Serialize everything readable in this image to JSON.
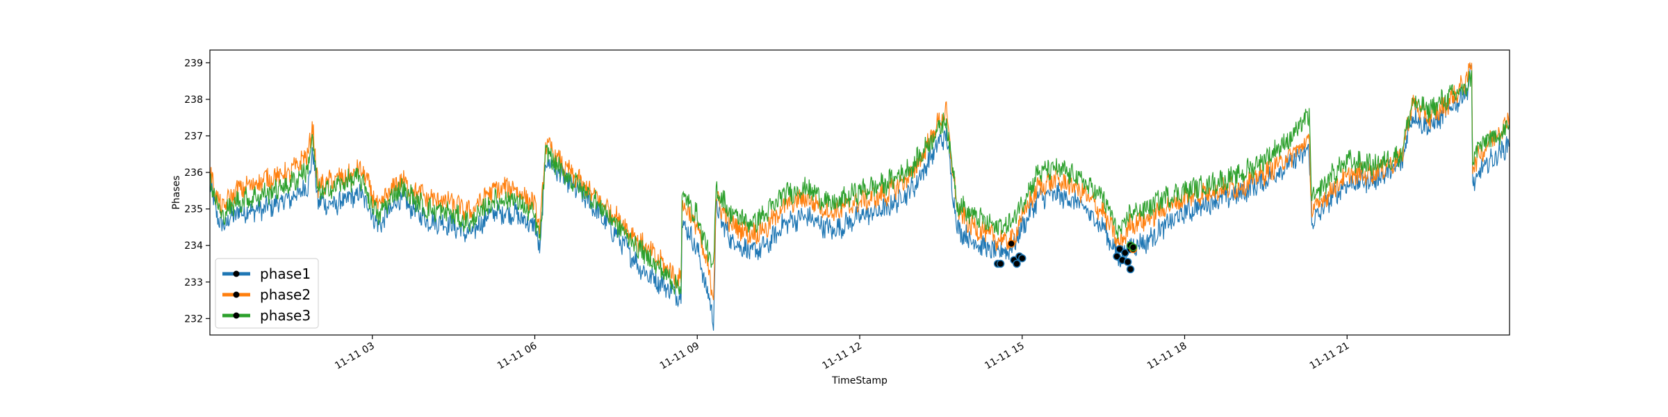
{
  "chart_data": {
    "type": "line",
    "xlabel": "TimeStamp",
    "ylabel": "Phases",
    "xlim": [
      0,
      24
    ],
    "ylim": [
      231.55,
      239.35
    ],
    "x_ticks": [
      {
        "value": 3,
        "label": "11-11 03"
      },
      {
        "value": 6,
        "label": "11-11 06"
      },
      {
        "value": 9,
        "label": "11-11 09"
      },
      {
        "value": 12,
        "label": "11-11 12"
      },
      {
        "value": 15,
        "label": "11-11 15"
      },
      {
        "value": 18,
        "label": "11-11 18"
      },
      {
        "value": 21,
        "label": "11-11 21"
      }
    ],
    "y_ticks": [
      {
        "value": 232,
        "label": "232"
      },
      {
        "value": 233,
        "label": "233"
      },
      {
        "value": 234,
        "label": "234"
      },
      {
        "value": 235,
        "label": "235"
      },
      {
        "value": 236,
        "label": "236"
      },
      {
        "value": 237,
        "label": "237"
      },
      {
        "value": 238,
        "label": "238"
      },
      {
        "value": 239,
        "label": "239"
      }
    ],
    "legend_position": "lower-left",
    "grid": false,
    "series": [
      {
        "name": "phase1",
        "color": "#1f77b4",
        "points": [
          [
            0,
            235.6
          ],
          [
            0.2,
            234.5
          ],
          [
            0.5,
            234.9
          ],
          [
            1.0,
            235.0
          ],
          [
            1.5,
            235.3
          ],
          [
            1.8,
            235.6
          ],
          [
            1.9,
            236.5
          ],
          [
            2.0,
            235.2
          ],
          [
            2.3,
            235.1
          ],
          [
            2.6,
            235.3
          ],
          [
            2.8,
            235.4
          ],
          [
            3.0,
            234.9
          ],
          [
            3.1,
            234.5
          ],
          [
            3.5,
            235.3
          ],
          [
            4.0,
            234.7
          ],
          [
            4.4,
            234.6
          ],
          [
            4.8,
            234.3
          ],
          [
            5.2,
            234.9
          ],
          [
            5.6,
            234.9
          ],
          [
            6.0,
            234.5
          ],
          [
            6.1,
            233.9
          ],
          [
            6.2,
            236.4
          ],
          [
            6.5,
            235.9
          ],
          [
            7.0,
            235.2
          ],
          [
            7.5,
            234.3
          ],
          [
            8.0,
            233.3
          ],
          [
            8.5,
            232.8
          ],
          [
            8.7,
            232.6
          ],
          [
            8.72,
            234.7
          ],
          [
            9.0,
            233.9
          ],
          [
            9.3,
            232.0
          ],
          [
            9.35,
            235.0
          ],
          [
            9.6,
            234.2
          ],
          [
            10.0,
            233.8
          ],
          [
            10.3,
            234.0
          ],
          [
            10.6,
            234.6
          ],
          [
            11.0,
            234.8
          ],
          [
            11.5,
            234.4
          ],
          [
            12.0,
            234.8
          ],
          [
            12.5,
            235.0
          ],
          [
            13.0,
            235.6
          ],
          [
            13.5,
            236.9
          ],
          [
            13.6,
            237.0
          ],
          [
            13.8,
            234.5
          ],
          [
            14.0,
            234.2
          ],
          [
            14.5,
            233.8
          ],
          [
            14.8,
            233.9
          ],
          [
            15.0,
            234.5
          ],
          [
            15.3,
            235.3
          ],
          [
            15.6,
            235.4
          ],
          [
            16.0,
            235.2
          ],
          [
            16.5,
            234.5
          ],
          [
            16.8,
            233.6
          ],
          [
            17.0,
            234.0
          ],
          [
            17.3,
            234.1
          ],
          [
            17.6,
            234.5
          ],
          [
            18.0,
            234.9
          ],
          [
            18.5,
            235.2
          ],
          [
            19.0,
            235.4
          ],
          [
            19.5,
            235.8
          ],
          [
            20.0,
            236.3
          ],
          [
            20.3,
            236.6
          ],
          [
            20.35,
            234.6
          ],
          [
            20.7,
            235.3
          ],
          [
            21.0,
            235.7
          ],
          [
            21.5,
            235.8
          ],
          [
            22.0,
            236.2
          ],
          [
            22.2,
            237.6
          ],
          [
            22.5,
            237.2
          ],
          [
            22.8,
            237.6
          ],
          [
            23.2,
            238.2
          ],
          [
            23.3,
            238.8
          ],
          [
            23.32,
            235.6
          ],
          [
            23.5,
            236.1
          ],
          [
            24.0,
            236.8
          ]
        ]
      },
      {
        "name": "phase2",
        "color": "#ff7f0e",
        "points": [
          [
            0,
            236.0
          ],
          [
            0.2,
            235.0
          ],
          [
            0.5,
            235.5
          ],
          [
            1.0,
            235.8
          ],
          [
            1.5,
            236.0
          ],
          [
            1.8,
            236.5
          ],
          [
            1.9,
            237.2
          ],
          [
            2.0,
            235.6
          ],
          [
            2.3,
            235.8
          ],
          [
            2.6,
            235.9
          ],
          [
            2.8,
            236.1
          ],
          [
            3.0,
            235.4
          ],
          [
            3.1,
            235.0
          ],
          [
            3.5,
            235.8
          ],
          [
            4.0,
            235.3
          ],
          [
            4.4,
            235.2
          ],
          [
            4.8,
            234.9
          ],
          [
            5.2,
            235.5
          ],
          [
            5.6,
            235.6
          ],
          [
            6.0,
            235.1
          ],
          [
            6.1,
            234.4
          ],
          [
            6.2,
            236.8
          ],
          [
            6.5,
            236.2
          ],
          [
            7.0,
            235.5
          ],
          [
            7.5,
            234.8
          ],
          [
            8.0,
            234.0
          ],
          [
            8.5,
            233.3
          ],
          [
            8.7,
            233.0
          ],
          [
            8.72,
            235.2
          ],
          [
            9.0,
            234.5
          ],
          [
            9.3,
            232.7
          ],
          [
            9.35,
            235.3
          ],
          [
            9.6,
            234.6
          ],
          [
            10.0,
            234.3
          ],
          [
            10.3,
            234.5
          ],
          [
            10.6,
            235.1
          ],
          [
            11.0,
            235.3
          ],
          [
            11.5,
            234.9
          ],
          [
            12.0,
            235.2
          ],
          [
            12.5,
            235.4
          ],
          [
            13.0,
            236.0
          ],
          [
            13.5,
            237.5
          ],
          [
            13.6,
            237.6
          ],
          [
            13.8,
            235.0
          ],
          [
            14.0,
            234.6
          ],
          [
            14.5,
            234.2
          ],
          [
            14.8,
            234.1
          ],
          [
            15.0,
            234.8
          ],
          [
            15.3,
            235.6
          ],
          [
            15.6,
            235.8
          ],
          [
            16.0,
            235.6
          ],
          [
            16.5,
            234.9
          ],
          [
            16.8,
            234.0
          ],
          [
            17.0,
            234.6
          ],
          [
            17.3,
            234.7
          ],
          [
            17.6,
            235.0
          ],
          [
            18.0,
            235.3
          ],
          [
            18.5,
            235.5
          ],
          [
            19.0,
            235.6
          ],
          [
            19.5,
            236.0
          ],
          [
            20.0,
            236.5
          ],
          [
            20.3,
            236.9
          ],
          [
            20.35,
            234.9
          ],
          [
            20.7,
            235.5
          ],
          [
            21.0,
            235.9
          ],
          [
            21.5,
            236.0
          ],
          [
            22.0,
            236.4
          ],
          [
            22.2,
            237.9
          ],
          [
            22.5,
            237.5
          ],
          [
            22.8,
            237.8
          ],
          [
            23.2,
            238.5
          ],
          [
            23.3,
            239.0
          ],
          [
            23.32,
            236.2
          ],
          [
            23.5,
            236.6
          ],
          [
            24.0,
            237.5
          ]
        ]
      },
      {
        "name": "phase3",
        "color": "#2ca02c",
        "points": [
          [
            0,
            235.8
          ],
          [
            0.2,
            234.8
          ],
          [
            0.5,
            235.2
          ],
          [
            1.0,
            235.4
          ],
          [
            1.5,
            235.7
          ],
          [
            1.8,
            236.1
          ],
          [
            1.9,
            236.9
          ],
          [
            2.0,
            235.4
          ],
          [
            2.3,
            235.6
          ],
          [
            2.6,
            235.8
          ],
          [
            2.8,
            235.8
          ],
          [
            3.0,
            235.1
          ],
          [
            3.1,
            234.8
          ],
          [
            3.5,
            235.6
          ],
          [
            4.0,
            235.0
          ],
          [
            4.4,
            234.9
          ],
          [
            4.8,
            234.6
          ],
          [
            5.2,
            235.2
          ],
          [
            5.6,
            235.3
          ],
          [
            6.0,
            234.8
          ],
          [
            6.1,
            234.1
          ],
          [
            6.2,
            236.6
          ],
          [
            6.5,
            236.0
          ],
          [
            7.0,
            235.4
          ],
          [
            7.5,
            234.6
          ],
          [
            8.0,
            233.8
          ],
          [
            8.5,
            233.1
          ],
          [
            8.7,
            232.8
          ],
          [
            8.72,
            235.4
          ],
          [
            9.0,
            234.8
          ],
          [
            9.3,
            233.3
          ],
          [
            9.35,
            235.6
          ],
          [
            9.6,
            234.9
          ],
          [
            10.0,
            234.6
          ],
          [
            10.3,
            234.9
          ],
          [
            10.6,
            235.4
          ],
          [
            11.0,
            235.6
          ],
          [
            11.5,
            235.1
          ],
          [
            12.0,
            235.5
          ],
          [
            12.5,
            235.7
          ],
          [
            13.0,
            236.2
          ],
          [
            13.5,
            237.3
          ],
          [
            13.6,
            237.4
          ],
          [
            13.8,
            235.2
          ],
          [
            14.0,
            234.9
          ],
          [
            14.5,
            234.5
          ],
          [
            14.8,
            234.6
          ],
          [
            15.0,
            235.2
          ],
          [
            15.3,
            236.0
          ],
          [
            15.6,
            236.1
          ],
          [
            16.0,
            235.9
          ],
          [
            16.5,
            235.3
          ],
          [
            16.8,
            234.3
          ],
          [
            17.0,
            234.9
          ],
          [
            17.3,
            235.0
          ],
          [
            17.6,
            235.3
          ],
          [
            18.0,
            235.5
          ],
          [
            18.5,
            235.7
          ],
          [
            19.0,
            235.9
          ],
          [
            19.5,
            236.4
          ],
          [
            20.0,
            237.0
          ],
          [
            20.3,
            237.6
          ],
          [
            20.35,
            235.2
          ],
          [
            20.7,
            235.9
          ],
          [
            21.0,
            236.3
          ],
          [
            21.5,
            236.2
          ],
          [
            22.0,
            236.5
          ],
          [
            22.2,
            237.9
          ],
          [
            22.5,
            237.7
          ],
          [
            22.8,
            238.0
          ],
          [
            23.2,
            238.3
          ],
          [
            23.3,
            238.6
          ],
          [
            23.32,
            236.4
          ],
          [
            23.5,
            236.8
          ],
          [
            24.0,
            237.2
          ]
        ]
      }
    ],
    "markers": [
      {
        "series": "phase1",
        "points": [
          [
            14.55,
            233.5
          ],
          [
            14.6,
            233.5
          ],
          [
            14.85,
            233.6
          ],
          [
            14.9,
            233.5
          ],
          [
            14.95,
            233.7
          ],
          [
            15.0,
            233.65
          ],
          [
            16.75,
            233.7
          ],
          [
            16.8,
            233.9
          ],
          [
            16.85,
            233.6
          ],
          [
            16.9,
            233.8
          ],
          [
            16.95,
            233.55
          ],
          [
            17.0,
            233.35
          ],
          [
            17.0,
            233.9
          ]
        ]
      },
      {
        "series": "phase2",
        "points": [
          [
            14.8,
            234.05
          ],
          [
            17.05,
            233.9
          ]
        ]
      },
      {
        "series": "phase3",
        "points": [
          [
            17.0,
            234.0
          ],
          [
            17.05,
            233.95
          ]
        ]
      }
    ]
  }
}
